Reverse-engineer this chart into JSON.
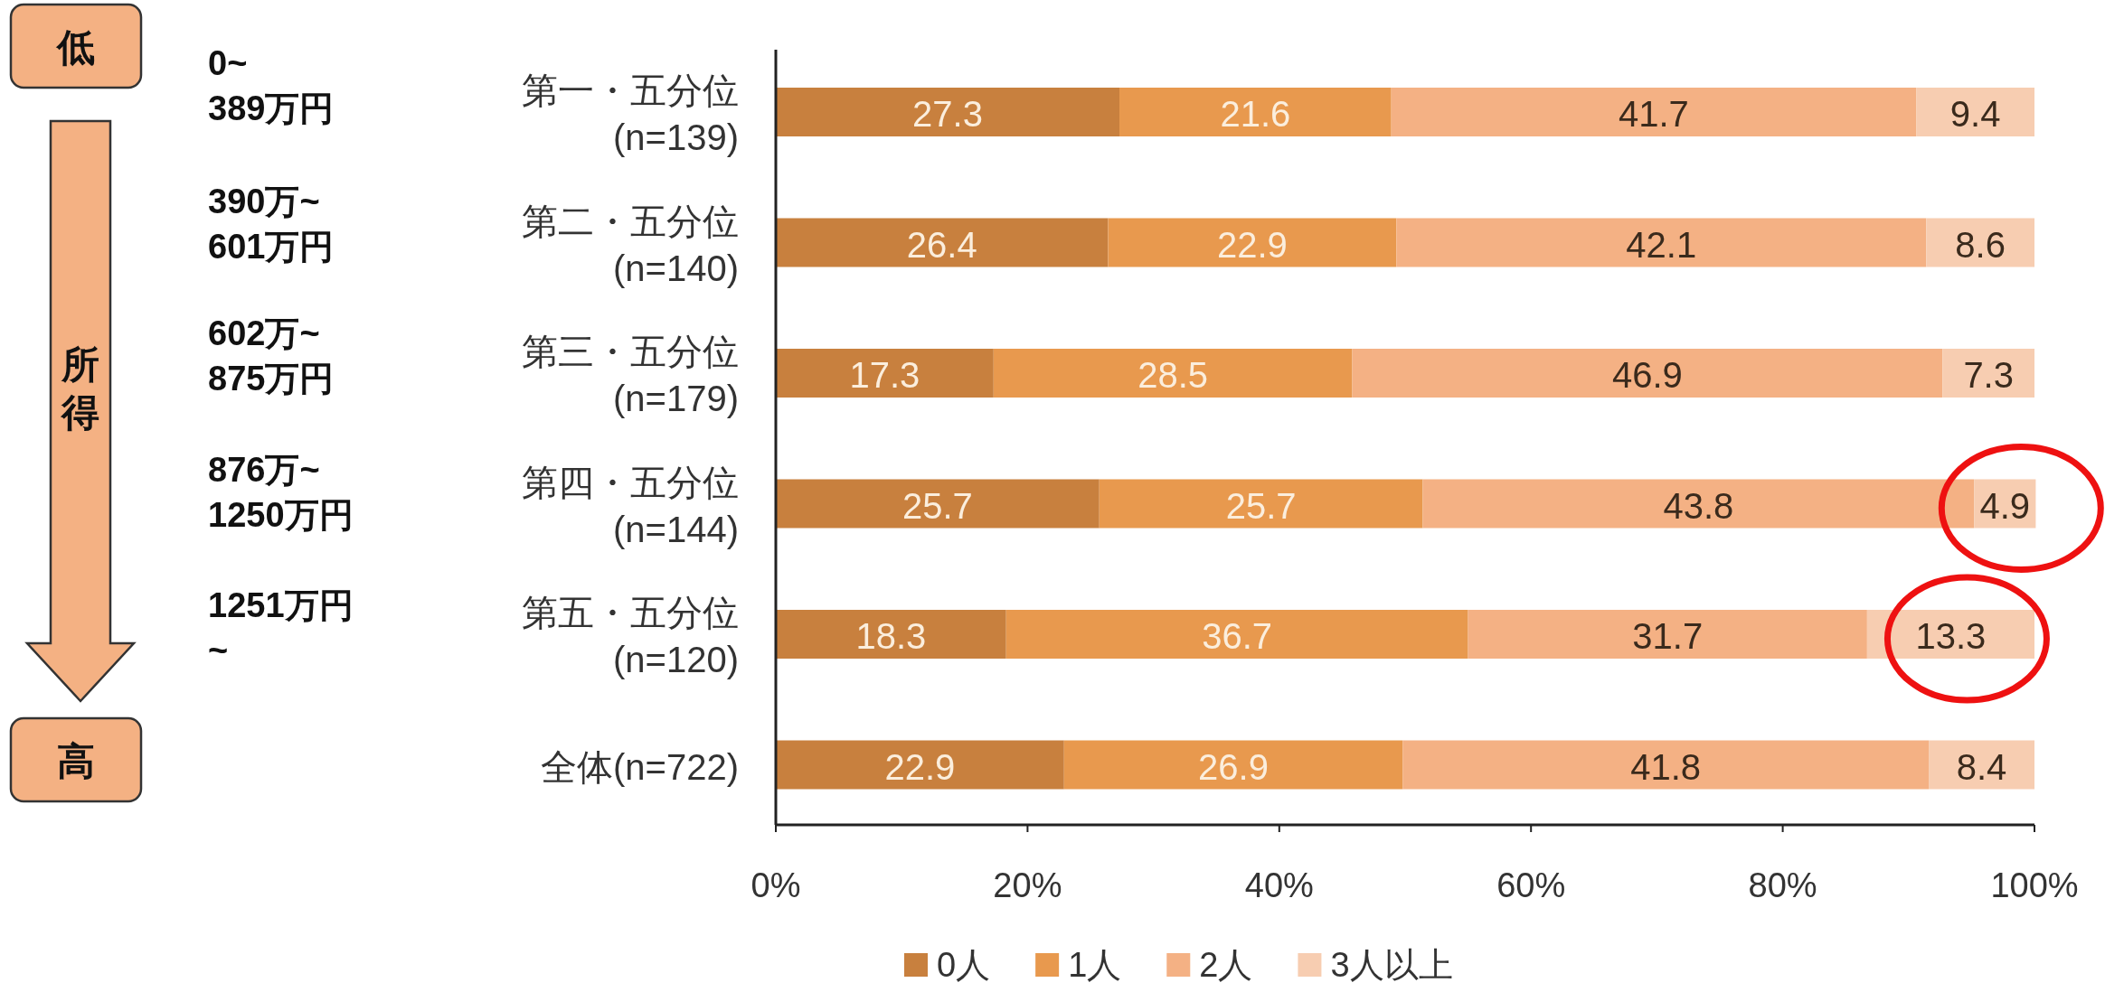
{
  "chart_data": {
    "type": "bar",
    "orientation": "horizontal",
    "stacked": true,
    "data_labels": true,
    "grid": false,
    "legend": "bottom",
    "categories": [
      "第一・五分位\n(n=139)",
      "第二・五分位\n(n=140)",
      "第三・五分位\n(n=179)",
      "第四・五分位\n(n=144)",
      "第五・五分位\n(n=120)",
      "全体(n=722)"
    ],
    "series": [
      {
        "name": "0人",
        "color": "#c8803e",
        "values": [
          27.3,
          26.4,
          17.3,
          25.7,
          18.3,
          22.9
        ]
      },
      {
        "name": "1人",
        "color": "#e8994e",
        "values": [
          21.6,
          22.9,
          28.5,
          25.7,
          36.7,
          26.9
        ]
      },
      {
        "name": "2人",
        "color": "#f4b184",
        "values": [
          41.7,
          42.1,
          46.9,
          43.8,
          31.7,
          41.8
        ]
      },
      {
        "name": "3人以上",
        "color": "#f7cdb1",
        "values": [
          9.4,
          8.6,
          7.3,
          4.9,
          13.3,
          8.4
        ]
      }
    ],
    "xlim": [
      0,
      100
    ],
    "xticks": [
      {
        "value": 0,
        "label": "0%"
      },
      {
        "value": 20,
        "label": "20%"
      },
      {
        "value": 40,
        "label": "40%"
      },
      {
        "value": 60,
        "label": "60%"
      },
      {
        "value": 80,
        "label": "80%"
      },
      {
        "value": 100,
        "label": "100%"
      }
    ],
    "annotations": [
      "低",
      "0~\n389万円",
      "390万~\n601万円",
      "602万~\n875万円",
      "876万~\n1250万円",
      "1251万円\n~",
      "所得",
      "高"
    ]
  }
}
